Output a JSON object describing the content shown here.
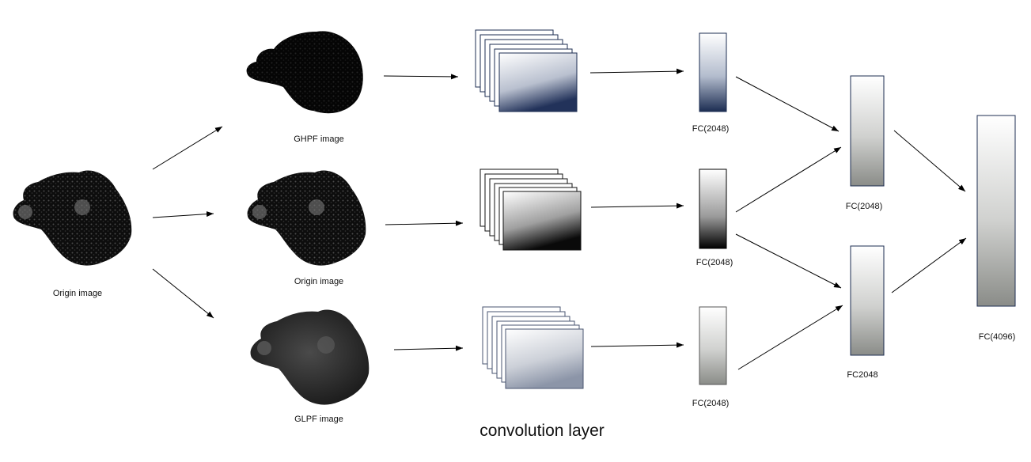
{
  "labels": {
    "origin_left": "Origin image",
    "ghpf": "GHPF image",
    "origin_mid": "Origin image",
    "glpf": "GLPF image",
    "fc_top": "FC(2048)",
    "fc_mid": "FC(2048)",
    "fc_bot": "FC(2048)",
    "fc_merge_top": "FC(2048)",
    "fc_merge_bot": "FC2048",
    "fc_final": "FC(4096)",
    "conv_layer": "convolution layer"
  },
  "colors": {
    "blue_dark": "#1c2d52",
    "black": "#000000",
    "gray": "#8a8c88"
  }
}
